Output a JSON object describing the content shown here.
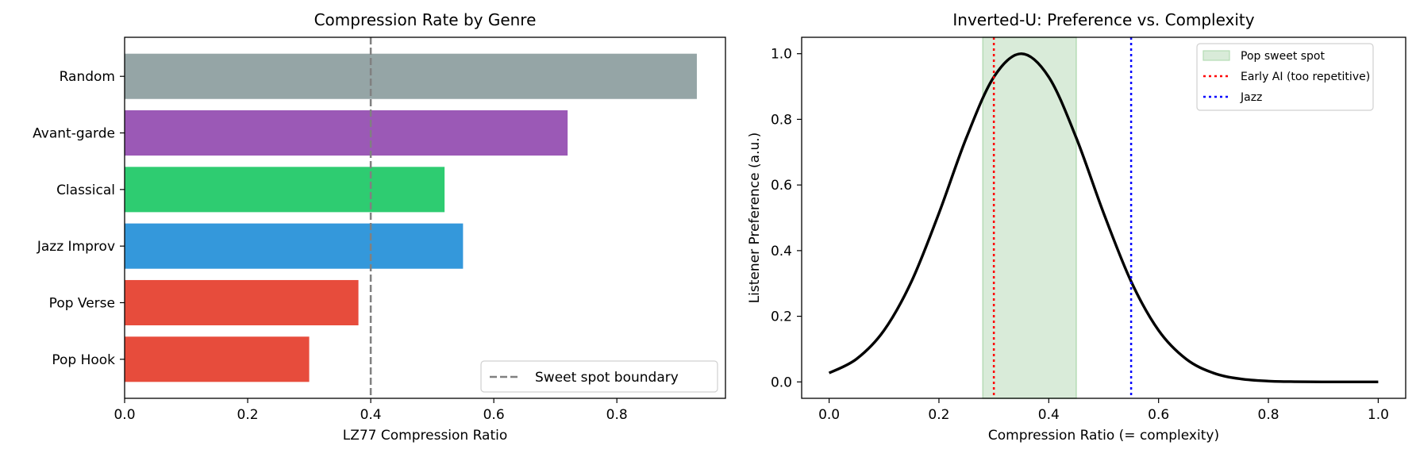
{
  "chart_data": [
    {
      "type": "bar",
      "orientation": "horizontal",
      "title": "Compression Rate by Genre",
      "xlabel": "LZ77 Compression Ratio",
      "ylabel": "",
      "categories": [
        "Pop Hook",
        "Pop Verse",
        "Jazz Improv",
        "Classical",
        "Avant-garde",
        "Random"
      ],
      "values": [
        0.3,
        0.38,
        0.55,
        0.52,
        0.72,
        0.93
      ],
      "colors": [
        "#e74c3c",
        "#e74c3c",
        "#3498db",
        "#2ecc71",
        "#9b59b6",
        "#95a5a6"
      ],
      "xlim": [
        0,
        0.9765
      ],
      "xticks": [
        "0.0",
        "0.2",
        "0.4",
        "0.6",
        "0.8"
      ],
      "reference_line": {
        "x": 0.4,
        "style": "dashed",
        "color": "#808080",
        "label": "Sweet spot boundary"
      },
      "legend": {
        "placement": "lower-right",
        "entries": [
          "Sweet spot boundary"
        ]
      },
      "grid": false
    },
    {
      "type": "line",
      "title": "Inverted-U: Preference vs. Complexity",
      "xlabel": "Compression Ratio (= complexity)",
      "ylabel": "Listener Preference (a.u.)",
      "xlim": [
        -0.05,
        1.05
      ],
      "ylim": [
        -0.05,
        1.05
      ],
      "xticks": [
        "0.0",
        "0.2",
        "0.4",
        "0.6",
        "0.8",
        "1.0"
      ],
      "yticks": [
        "0.0",
        "0.2",
        "0.4",
        "0.6",
        "0.8",
        "1.0"
      ],
      "x": [
        0,
        0.05,
        0.1,
        0.15,
        0.2,
        0.25,
        0.3,
        0.35,
        0.4,
        0.45,
        0.5,
        0.55,
        0.6,
        0.65,
        0.7,
        0.75,
        0.8,
        0.85,
        0.9,
        0.95,
        1.0
      ],
      "y": [
        0.027,
        0.07,
        0.157,
        0.306,
        0.514,
        0.744,
        0.929,
        1.0,
        0.929,
        0.744,
        0.514,
        0.306,
        0.157,
        0.07,
        0.027,
        0.009,
        0.0025,
        0.0006,
        0.0001,
        0,
        0
      ],
      "line_color": "#000000",
      "shaded_region": {
        "x0": 0.28,
        "x1": 0.45,
        "color": "#d9ebd9",
        "label": "Pop sweet spot"
      },
      "vlines": [
        {
          "x": 0.3,
          "color": "#ff0000",
          "style": "dotted",
          "label": "Early AI (too repetitive)"
        },
        {
          "x": 0.55,
          "color": "#0000ff",
          "style": "dotted",
          "label": "Jazz"
        }
      ],
      "legend": {
        "placement": "top-right",
        "entries": [
          "Pop sweet spot",
          "Early AI (too repetitive)",
          "Jazz"
        ]
      },
      "grid": false
    }
  ]
}
